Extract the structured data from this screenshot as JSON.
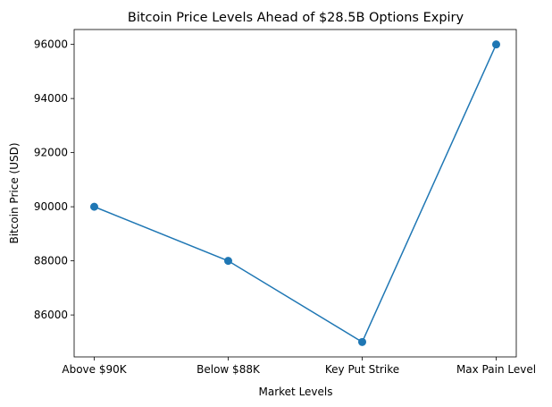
{
  "chart_data": {
    "type": "line",
    "title": "Bitcoin Price Levels Ahead of $28.5B Options Expiry",
    "xlabel": "Market Levels",
    "ylabel": "Bitcoin Price (USD)",
    "categories": [
      "Above $90K",
      "Below $88K",
      "Key Put Strike",
      "Max Pain Level"
    ],
    "values": [
      90000,
      88000,
      85000,
      96000
    ],
    "ylim": [
      84450,
      96550
    ],
    "yticks": [
      86000,
      88000,
      90000,
      92000,
      94000,
      96000
    ],
    "grid": false,
    "marker": "circle",
    "color": "#1f77b4"
  }
}
